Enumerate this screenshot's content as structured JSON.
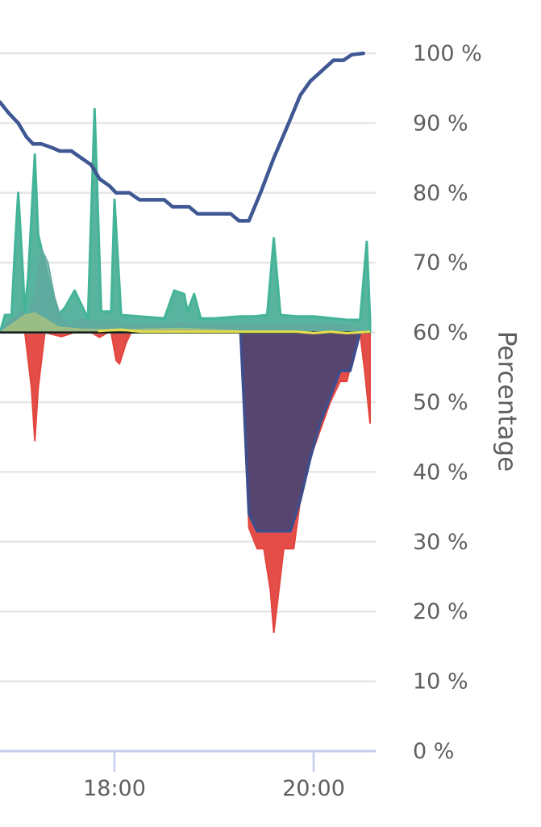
{
  "chart_data": {
    "type": "area",
    "ylabel": "Percentage",
    "ylim": [
      0,
      100
    ],
    "y_unit": "%",
    "y_ticks": [
      {
        "value": 0,
        "label": "0 %"
      },
      {
        "value": 10,
        "label": "10 %"
      },
      {
        "value": 20,
        "label": "20 %"
      },
      {
        "value": 30,
        "label": "30 %"
      },
      {
        "value": 40,
        "label": "40 %"
      },
      {
        "value": 50,
        "label": "50 %"
      },
      {
        "value": 60,
        "label": "60 %"
      },
      {
        "value": 70,
        "label": "70 %"
      },
      {
        "value": 80,
        "label": "80 %"
      },
      {
        "value": 90,
        "label": "90 %"
      },
      {
        "value": 100,
        "label": "100 %"
      }
    ],
    "x_ticks": [
      {
        "value": "18:00",
        "label": "18:00"
      },
      {
        "value": "20:00",
        "label": "20:00"
      }
    ],
    "x_visible_range": [
      "16:51",
      "20:37"
    ],
    "grid": true,
    "colors": {
      "grid": "#e6e6e6",
      "axis": "#c5ccee",
      "tick_text": "#5f5f5f",
      "baseline": "#1a1a1a",
      "battery_line": "#3f5894",
      "discharge_fill": "#e3453e",
      "home_fill": "#57456f",
      "home_stroke": "#3e4e8c",
      "solar_fill": "#4aae96",
      "solar_stroke": "#43b497",
      "battery_fill": "#62a89f",
      "grid_small_fill": "#a9c27f",
      "small_line": "#e8dd4a"
    },
    "baseline_value": 60,
    "series": [
      {
        "key": "battery_level",
        "kind": "line",
        "points": [
          [
            "16:51",
            93
          ],
          [
            "16:56",
            91.5
          ],
          [
            "17:02",
            90
          ],
          [
            "17:07",
            88
          ],
          [
            "17:11",
            87
          ],
          [
            "17:16",
            87
          ],
          [
            "17:22",
            86.5
          ],
          [
            "17:27",
            86
          ],
          [
            "17:34",
            86
          ],
          [
            "17:40",
            85
          ],
          [
            "17:46",
            84
          ],
          [
            "17:51",
            82
          ],
          [
            "17:57",
            81
          ],
          [
            "18:01",
            80
          ],
          [
            "18:09",
            80
          ],
          [
            "18:15",
            79
          ],
          [
            "18:20",
            79
          ],
          [
            "18:30",
            79
          ],
          [
            "18:35",
            78
          ],
          [
            "18:45",
            78
          ],
          [
            "18:50",
            77
          ],
          [
            "18:58",
            77
          ],
          [
            "19:05",
            77
          ],
          [
            "19:10",
            77
          ],
          [
            "19:15",
            76
          ],
          [
            "19:21",
            76
          ],
          [
            "19:28",
            80
          ],
          [
            "19:36",
            85
          ],
          [
            "19:45",
            90
          ],
          [
            "19:52",
            94
          ],
          [
            "19:58",
            96
          ],
          [
            "20:05",
            97.5
          ],
          [
            "20:12",
            99
          ],
          [
            "20:18",
            99
          ],
          [
            "20:23",
            99.8
          ],
          [
            "20:30",
            100
          ]
        ]
      },
      {
        "key": "grid_import",
        "kind": "area-below",
        "points": [
          [
            "16:51",
            60
          ],
          [
            "16:58",
            60
          ],
          [
            "17:06",
            60
          ],
          [
            "17:10",
            52
          ],
          [
            "17:12",
            44.5
          ],
          [
            "17:14",
            52
          ],
          [
            "17:18",
            60
          ],
          [
            "17:28",
            59.4
          ],
          [
            "17:36",
            60
          ],
          [
            "17:46",
            60
          ],
          [
            "17:51",
            59.3
          ],
          [
            "17:56",
            60
          ],
          [
            "17:58",
            60
          ],
          [
            "18:01",
            56
          ],
          [
            "18:03",
            55.5
          ],
          [
            "18:07",
            58.5
          ],
          [
            "18:10",
            60
          ],
          [
            "19:14",
            60
          ],
          [
            "19:18",
            60
          ],
          [
            "19:21",
            32
          ],
          [
            "19:26",
            29
          ],
          [
            "19:30",
            29
          ],
          [
            "19:34",
            23
          ],
          [
            "19:36",
            17
          ],
          [
            "19:39",
            23
          ],
          [
            "19:42",
            29
          ],
          [
            "19:48",
            29
          ],
          [
            "19:52",
            36
          ],
          [
            "19:58",
            42
          ],
          [
            "20:04",
            46
          ],
          [
            "20:10",
            50
          ],
          [
            "20:16",
            53
          ],
          [
            "20:20",
            53
          ],
          [
            "20:24",
            57
          ],
          [
            "20:28",
            60
          ],
          [
            "20:31",
            54
          ],
          [
            "20:34",
            47
          ],
          [
            "20:34",
            60
          ]
        ]
      },
      {
        "key": "home_consumption",
        "kind": "area-below",
        "points": [
          [
            "19:16",
            60
          ],
          [
            "19:18",
            50
          ],
          [
            "19:21",
            34
          ],
          [
            "19:26",
            31.5
          ],
          [
            "19:46",
            31.5
          ],
          [
            "19:52",
            36
          ],
          [
            "19:58",
            42
          ],
          [
            "20:04",
            47
          ],
          [
            "20:12",
            52
          ],
          [
            "20:16",
            54.5
          ],
          [
            "20:22",
            54.5
          ],
          [
            "20:28",
            60
          ]
        ]
      },
      {
        "key": "solar_production",
        "kind": "area-above",
        "points": [
          [
            "16:51",
            60
          ],
          [
            "16:54",
            62.5
          ],
          [
            "16:58",
            62.5
          ],
          [
            "17:00",
            72
          ],
          [
            "17:02",
            80
          ],
          [
            "17:04",
            72
          ],
          [
            "17:06",
            63
          ],
          [
            "17:08",
            68
          ],
          [
            "17:12",
            85.5
          ],
          [
            "17:14",
            74
          ],
          [
            "17:18",
            70
          ],
          [
            "17:22",
            66
          ],
          [
            "17:26",
            62.5
          ],
          [
            "17:30",
            63.5
          ],
          [
            "17:36",
            66
          ],
          [
            "17:40",
            64
          ],
          [
            "17:44",
            62
          ],
          [
            "17:48",
            92
          ],
          [
            "17:52",
            63
          ],
          [
            "17:58",
            63
          ],
          [
            "18:00",
            79
          ],
          [
            "18:04",
            62.5
          ],
          [
            "18:30",
            62
          ],
          [
            "18:36",
            66
          ],
          [
            "18:42",
            65.5
          ],
          [
            "18:44",
            63
          ],
          [
            "18:48",
            65.5
          ],
          [
            "18:52",
            62
          ],
          [
            "19:00",
            62
          ],
          [
            "19:16",
            62.3
          ],
          [
            "19:24",
            62.3
          ],
          [
            "19:32",
            62.5
          ],
          [
            "19:36",
            73.5
          ],
          [
            "19:40",
            62.5
          ],
          [
            "19:50",
            62.3
          ],
          [
            "20:00",
            62.3
          ],
          [
            "20:12",
            62
          ],
          [
            "20:20",
            61.8
          ],
          [
            "20:28",
            61.8
          ],
          [
            "20:32",
            73
          ],
          [
            "20:34",
            61.8
          ],
          [
            "20:34",
            60
          ]
        ]
      },
      {
        "key": "battery_charge",
        "kind": "area-above",
        "points": [
          [
            "16:51",
            60
          ],
          [
            "16:56",
            61.5
          ],
          [
            "17:00",
            62
          ],
          [
            "17:04",
            63
          ],
          [
            "17:08",
            62
          ],
          [
            "17:12",
            65
          ],
          [
            "17:16",
            72
          ],
          [
            "17:20",
            70
          ],
          [
            "17:24",
            65
          ],
          [
            "17:28",
            62
          ],
          [
            "17:32",
            61
          ],
          [
            "17:40",
            62
          ],
          [
            "17:48",
            61.5
          ],
          [
            "17:56",
            61.5
          ],
          [
            "18:01",
            61.5
          ],
          [
            "18:06",
            61.2
          ],
          [
            "18:20",
            61
          ],
          [
            "18:40",
            61.3
          ],
          [
            "19:00",
            61
          ],
          [
            "19:20",
            61
          ],
          [
            "19:40",
            61
          ],
          [
            "20:00",
            61
          ],
          [
            "20:20",
            61
          ],
          [
            "20:34",
            60
          ]
        ]
      },
      {
        "key": "grid_export",
        "kind": "area-above",
        "points": [
          [
            "16:51",
            60
          ],
          [
            "17:00",
            61.5
          ],
          [
            "17:06",
            62.5
          ],
          [
            "17:12",
            62.8
          ],
          [
            "17:18",
            62
          ],
          [
            "17:26",
            60.8
          ],
          [
            "17:40",
            60.5
          ],
          [
            "18:00",
            60.3
          ],
          [
            "18:20",
            60.5
          ],
          [
            "18:40",
            60.6
          ],
          [
            "19:00",
            60.4
          ],
          [
            "19:20",
            60.2
          ],
          [
            "20:34",
            60
          ]
        ]
      },
      {
        "key": "small_consumer",
        "kind": "line",
        "points": [
          [
            "17:50",
            60.2
          ],
          [
            "18:04",
            60.4
          ],
          [
            "18:16",
            60.1
          ],
          [
            "19:50",
            60.1
          ],
          [
            "20:00",
            59.9
          ],
          [
            "20:10",
            60.1
          ],
          [
            "20:20",
            59.9
          ],
          [
            "20:34",
            60.1
          ]
        ]
      }
    ]
  }
}
